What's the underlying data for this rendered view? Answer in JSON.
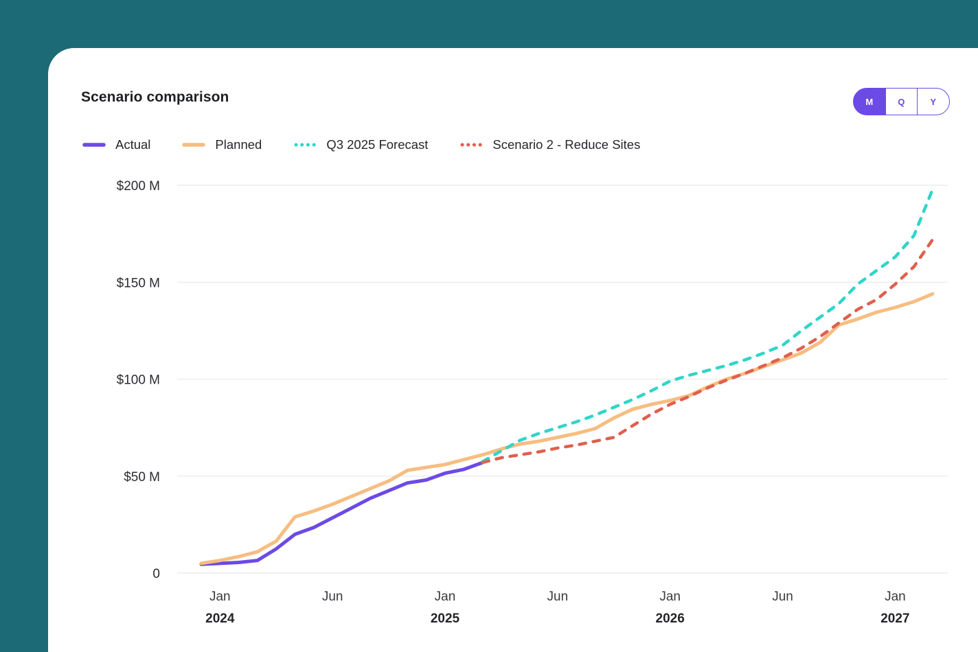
{
  "header": {
    "title": "Scenario comparison"
  },
  "toggle": {
    "options": [
      "M",
      "Q",
      "Y"
    ],
    "selected": "M"
  },
  "colors": {
    "background": "#1b6a75",
    "card": "#ffffff",
    "accent": "#6b4ae6",
    "grid": "#ececef",
    "axis_text": "#2b2c30"
  },
  "chart_data": {
    "type": "line",
    "title": "Scenario comparison",
    "ylabel": "",
    "xlabel": "",
    "ylim": [
      0,
      200
    ],
    "grid": "horizontal",
    "legend_position": "top",
    "y_ticks": [
      {
        "value": 200,
        "label": "$200 M"
      },
      {
        "value": 150,
        "label": "$150 M"
      },
      {
        "value": 100,
        "label": "$100 M"
      },
      {
        "value": 50,
        "label": "$50 M"
      },
      {
        "value": 0,
        "label": "0"
      }
    ],
    "n_points": 40,
    "x_tick_indices": [
      1,
      7,
      13,
      19,
      25,
      31,
      37
    ],
    "x_tick_labels": [
      {
        "month": "Jan",
        "year": "2024"
      },
      {
        "month": "Jun",
        "year": ""
      },
      {
        "month": "Jan",
        "year": "2025"
      },
      {
        "month": "Jun",
        "year": ""
      },
      {
        "month": "Jan",
        "year": "2026"
      },
      {
        "month": "Jun",
        "year": ""
      },
      {
        "month": "Jan",
        "year": "2027"
      }
    ],
    "unit": "$M",
    "series": [
      {
        "name": "Actual",
        "color": "#6b4ae6",
        "style": "solid",
        "values": [
          4.5,
          5,
          5.5,
          6.5,
          12.5,
          20,
          23.5,
          28.5,
          33.5,
          38.5,
          42.5,
          46.5,
          48,
          51.5,
          53.5,
          57,
          null,
          null,
          null,
          null,
          null,
          null,
          null,
          null,
          null,
          null,
          null,
          null,
          null,
          null,
          null,
          null,
          null,
          null,
          null,
          null,
          null,
          null,
          null,
          null
        ]
      },
      {
        "name": "Planned",
        "color": "#f6bd81",
        "style": "solid",
        "values": [
          5,
          6.5,
          8.5,
          11,
          16.5,
          29,
          32,
          35.5,
          39.5,
          43.5,
          47.5,
          53,
          54.5,
          56,
          58.5,
          61,
          64,
          66.5,
          68,
          70,
          72,
          74.5,
          80,
          84.5,
          87,
          89,
          91.5,
          96,
          100,
          103,
          106.5,
          110,
          113.5,
          119,
          128,
          131,
          134.5,
          137,
          140,
          144
        ]
      },
      {
        "name": "Q3 2025 Forecast",
        "color": "#30d5c8",
        "style": "dashed",
        "values": [
          null,
          null,
          null,
          null,
          null,
          null,
          null,
          null,
          null,
          null,
          null,
          null,
          null,
          null,
          null,
          57.5,
          63,
          68.5,
          72,
          75,
          78,
          81.5,
          85.5,
          89.5,
          94,
          99,
          102,
          104.5,
          107,
          110,
          113.5,
          117.5,
          125,
          132,
          139,
          149,
          156,
          163,
          174,
          198
        ]
      },
      {
        "name": "Scenario 2 - Reduce Sites",
        "color": "#e05f4e",
        "style": "dashed",
        "values": [
          null,
          null,
          null,
          null,
          null,
          null,
          null,
          null,
          null,
          null,
          null,
          null,
          null,
          null,
          null,
          57,
          59.5,
          61,
          62.5,
          64.5,
          66,
          68,
          70,
          76,
          82,
          87,
          91,
          95.5,
          99.5,
          103,
          107,
          111,
          116,
          122,
          129,
          136,
          141,
          149,
          158,
          172
        ]
      }
    ]
  }
}
